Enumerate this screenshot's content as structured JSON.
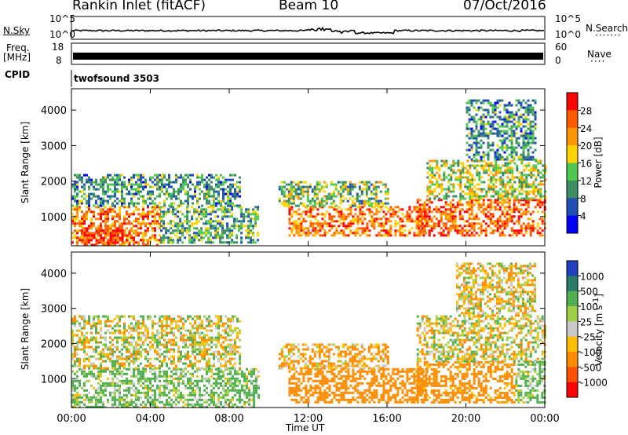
{
  "header": {
    "station": "Rankin Inlet (fitACF)",
    "beam": "Beam 10",
    "date": "07/Oct/2016"
  },
  "top_panels": {
    "nsky_label": "N.Sky",
    "nsky_ticks": [
      "10^5",
      "10^0"
    ],
    "nsearch_label": "N.Search",
    "freq_label": "Freq.",
    "freq_unit": "[MHz]",
    "freq_ticks": [
      "18",
      "8"
    ],
    "nave_label": "Nave",
    "nave_ticks": [
      "60",
      "0"
    ],
    "cpid_label": "CPID",
    "cpid_value": "twofsound 3503"
  },
  "colors": {
    "power": [
      "#0000ff",
      "#1f50b4",
      "#3c8c64",
      "#50c850",
      "#ffd200",
      "#ff9600",
      "#ff5a00",
      "#ff0000"
    ],
    "velocity": [
      "#ff0000",
      "#ff5000",
      "#ff8c00",
      "#ffbe00",
      "#c8c8c8",
      "#a0d046",
      "#50b050",
      "#2a7a6a",
      "#2040c0"
    ]
  },
  "chart_data": [
    {
      "type": "heatmap",
      "title": "Power",
      "ylabel": "Slant Range [km]",
      "xlabel": "",
      "x_ticks": [
        "00:00",
        "04:00",
        "08:00",
        "12:00",
        "16:00",
        "20:00",
        "00:00"
      ],
      "y_ticks": [
        1000,
        2000,
        3000,
        4000
      ],
      "xlim_hours": [
        0,
        24
      ],
      "ylim_km": [
        180,
        4600
      ],
      "colorbar": {
        "label": "Power [dB]",
        "ticks": [
          4,
          8,
          12,
          16,
          20,
          24,
          28
        ]
      },
      "echo_regions": [
        {
          "t0": 0.0,
          "t1": 4.5,
          "r0": 180,
          "r1": 1300,
          "value": 26
        },
        {
          "t0": 0.5,
          "t1": 3.0,
          "r0": 180,
          "r1": 700,
          "value": 30
        },
        {
          "t0": 0.0,
          "t1": 8.5,
          "r0": 1300,
          "r1": 2200,
          "value": 12
        },
        {
          "t0": 4.5,
          "t1": 9.5,
          "r0": 300,
          "r1": 1300,
          "value": 14
        },
        {
          "t0": 11.0,
          "t1": 18.0,
          "r0": 500,
          "r1": 1300,
          "value": 26
        },
        {
          "t0": 10.5,
          "t1": 16.0,
          "r0": 1300,
          "r1": 2000,
          "value": 16
        },
        {
          "t0": 17.5,
          "t1": 24.0,
          "r0": 500,
          "r1": 1500,
          "value": 28
        },
        {
          "t0": 18.0,
          "t1": 24.0,
          "r0": 1500,
          "r1": 2600,
          "value": 18
        },
        {
          "t0": 20.0,
          "t1": 23.5,
          "r0": 2600,
          "r1": 4300,
          "value": 12
        }
      ]
    },
    {
      "type": "heatmap",
      "title": "Velocity",
      "ylabel": "Slant Range [km]",
      "xlabel": "Time UT",
      "x_ticks": [
        "00:00",
        "04:00",
        "08:00",
        "12:00",
        "16:00",
        "20:00",
        "00:00"
      ],
      "y_ticks": [
        1000,
        2000,
        3000,
        4000
      ],
      "xlim_hours": [
        0,
        24
      ],
      "ylim_km": [
        180,
        4600
      ],
      "colorbar": {
        "label": "Velocity [m s^-1]",
        "ticks": [
          1000,
          500,
          100,
          25,
          -25,
          -100,
          -500,
          -1000
        ]
      },
      "echo_regions": [
        {
          "t0": 0.0,
          "t1": 9.5,
          "r0": 180,
          "r1": 1300,
          "value": 150
        },
        {
          "t0": 0.0,
          "t1": 8.5,
          "r0": 1300,
          "r1": 2800,
          "value": 0
        },
        {
          "t0": 11.0,
          "t1": 18.0,
          "r0": 300,
          "r1": 1300,
          "value": -300
        },
        {
          "t0": 10.5,
          "t1": 16.0,
          "r0": 1300,
          "r1": 2000,
          "value": -150
        },
        {
          "t0": 17.5,
          "t1": 22.5,
          "r0": 300,
          "r1": 1500,
          "value": -250
        },
        {
          "t0": 17.5,
          "t1": 24.0,
          "r0": 1500,
          "r1": 2800,
          "value": 0
        },
        {
          "t0": 22.5,
          "t1": 24.0,
          "r0": 300,
          "r1": 1500,
          "value": 150
        },
        {
          "t0": 19.5,
          "t1": 23.5,
          "r0": 2800,
          "r1": 4300,
          "value": -50
        }
      ]
    }
  ]
}
